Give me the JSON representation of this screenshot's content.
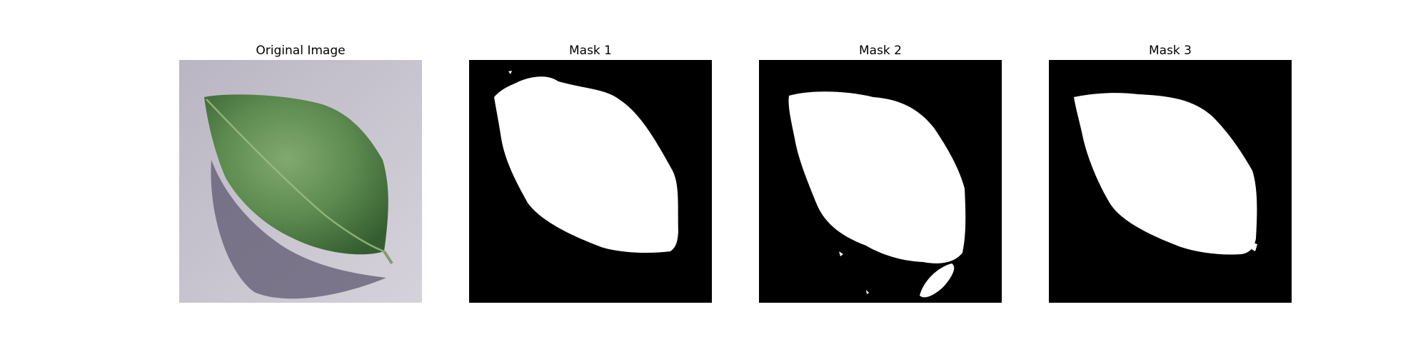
{
  "panels": [
    {
      "title": "Original Image",
      "kind": "photo"
    },
    {
      "title": "Mask 1",
      "kind": "mask"
    },
    {
      "title": "Mask 2",
      "kind": "mask"
    },
    {
      "title": "Mask 3",
      "kind": "mask"
    }
  ],
  "colors": {
    "background": "#ffffff",
    "mask_bg": "#000000",
    "mask_fg": "#ffffff",
    "photo_surface": "#c9c4d0",
    "leaf_dark": "#3f6e37",
    "leaf_light": "#7ba86a",
    "shadow": "#5d5870"
  }
}
